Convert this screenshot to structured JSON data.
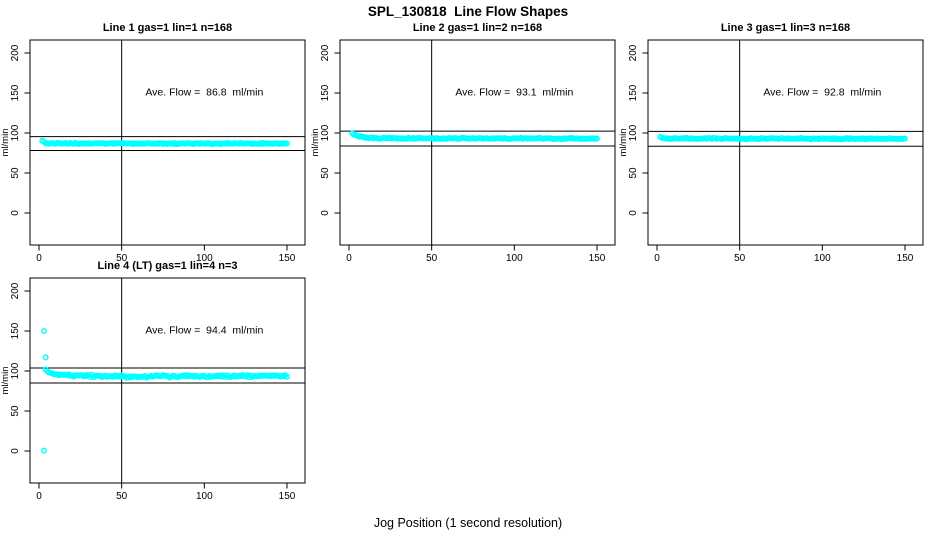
{
  "title": "SPL_130818  Line Flow Shapes",
  "xlabel": "Jog Position (1 second resolution)",
  "ylabel": "ml/min",
  "point_color": "#00ffff",
  "axis_color": "#000000",
  "background_color": "#ffffff",
  "chart_data": [
    {
      "type": "scatter",
      "title": "Line 1 gas=1 lin=1 n=168",
      "annotation": "Ave. Flow =  86.8  ml/min",
      "ave_flow_ml_min": 86.8,
      "n": 168,
      "xlim": [
        0,
        150
      ],
      "ylim": [
        0,
        200
      ],
      "xticks": [
        0,
        50,
        100,
        150
      ],
      "yticks": [
        0,
        50,
        100,
        150,
        200
      ],
      "vline_x": 50,
      "ref_lines": [
        95.5,
        78.1
      ],
      "x_range": [
        2,
        150
      ],
      "x_step": 1,
      "series_profile": [
        [
          2,
          90.5
        ],
        [
          3,
          88.5
        ],
        [
          5,
          87.3
        ],
        [
          10,
          86.9
        ],
        [
          150,
          86.8
        ]
      ],
      "noise": 0.9,
      "outliers": []
    },
    {
      "type": "scatter",
      "title": "Line 2 gas=1 lin=2 n=168",
      "annotation": "Ave. Flow =  93.1  ml/min",
      "ave_flow_ml_min": 93.1,
      "n": 168,
      "xlim": [
        0,
        150
      ],
      "ylim": [
        0,
        200
      ],
      "xticks": [
        0,
        50,
        100,
        150
      ],
      "yticks": [
        0,
        50,
        100,
        150,
        200
      ],
      "vline_x": 50,
      "ref_lines": [
        102.4,
        83.8
      ],
      "x_range": [
        2,
        150
      ],
      "x_step": 1,
      "series_profile": [
        [
          2,
          100
        ],
        [
          4,
          97.5
        ],
        [
          7,
          95.5
        ],
        [
          12,
          94
        ],
        [
          20,
          93.3
        ],
        [
          150,
          93.1
        ]
      ],
      "noise": 0.9,
      "outliers": []
    },
    {
      "type": "scatter",
      "title": "Line 3 gas=1 lin=3 n=168",
      "annotation": "Ave. Flow =  92.8  ml/min",
      "ave_flow_ml_min": 92.8,
      "n": 168,
      "xlim": [
        0,
        150
      ],
      "ylim": [
        0,
        200
      ],
      "xticks": [
        0,
        50,
        100,
        150
      ],
      "yticks": [
        0,
        50,
        100,
        150,
        200
      ],
      "vline_x": 50,
      "ref_lines": [
        102.1,
        83.5
      ],
      "x_range": [
        2,
        150
      ],
      "x_step": 1,
      "series_profile": [
        [
          2,
          95
        ],
        [
          4,
          93.8
        ],
        [
          8,
          93.1
        ],
        [
          150,
          92.8
        ]
      ],
      "noise": 0.9,
      "outliers": []
    },
    {
      "type": "scatter",
      "title": "Line 4 (LT) gas=1 lin=4 n=3",
      "annotation": "Ave. Flow =  94.4  ml/min",
      "ave_flow_ml_min": 94.4,
      "n": 3,
      "xlim": [
        0,
        150
      ],
      "ylim": [
        0,
        200
      ],
      "xticks": [
        0,
        50,
        100,
        150
      ],
      "yticks": [
        0,
        50,
        100,
        150,
        200
      ],
      "vline_x": 50,
      "ref_lines": [
        103.8,
        85.0
      ],
      "x_range": [
        4,
        150
      ],
      "x_step": 1,
      "series_profile": [
        [
          4,
          101
        ],
        [
          6,
          98
        ],
        [
          10,
          95.5
        ],
        [
          20,
          94
        ],
        [
          60,
          93.2
        ],
        [
          110,
          93.6
        ],
        [
          150,
          93.8
        ]
      ],
      "noise": 1.8,
      "outliers": [
        [
          3,
          150
        ],
        [
          4,
          117
        ],
        [
          3,
          0.5
        ]
      ]
    }
  ]
}
